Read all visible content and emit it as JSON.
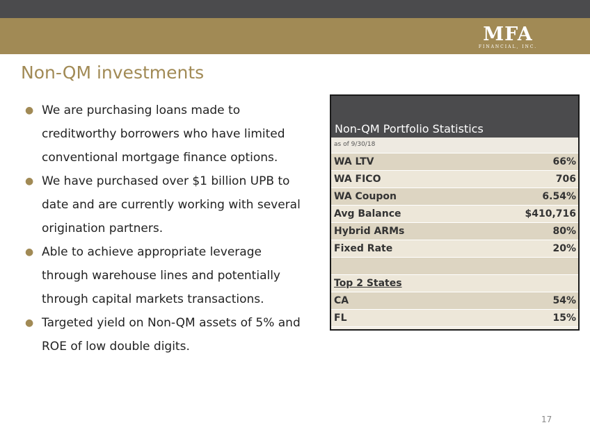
{
  "logo": {
    "mark": "MFA",
    "subtitle": "FINANCIAL, INC."
  },
  "title": "Non-QM investments",
  "bullets": [
    "We are purchasing loans made to creditworthy borrowers who have limited conventional mortgage finance options.",
    "We have purchased over $1 billion UPB to date and are currently working with several origination partners.",
    "Able to achieve appropriate leverage through warehouse lines and potentially through capital markets transactions.",
    "Targeted yield on Non-QM assets of 5% and ROE of low double digits."
  ],
  "stats": {
    "title": "Non-QM Portfolio Statistics",
    "as_of": "as of 9/30/18",
    "rows": [
      {
        "label": "WA LTV",
        "value": "66%"
      },
      {
        "label": "WA FICO",
        "value": "706"
      },
      {
        "label": "WA Coupon",
        "value": "6.54%"
      },
      {
        "label": "Avg Balance",
        "value": "$410,716"
      },
      {
        "label": "Hybrid ARMs",
        "value": "80%"
      },
      {
        "label": "Fixed Rate",
        "value": "20%"
      },
      {
        "label": "",
        "value": ""
      },
      {
        "label": "Top 2 States",
        "value": ""
      },
      {
        "label": "CA",
        "value": "54%"
      },
      {
        "label": "FL",
        "value": "15%"
      }
    ]
  },
  "page_number": "17",
  "colors": {
    "gold": "#a18a55",
    "dark_gray": "#4b4b4d"
  }
}
